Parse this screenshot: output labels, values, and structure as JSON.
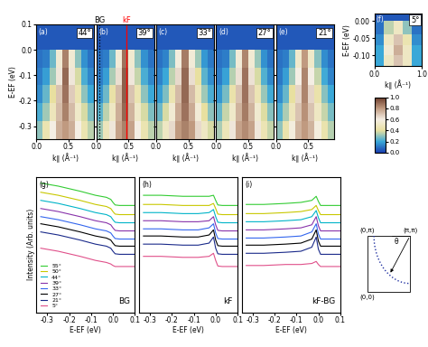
{
  "chart_data": [
    {
      "type": "heatmap",
      "title": "(a)",
      "annotation": "44°",
      "x_edges": [
        0.0,
        0.1,
        0.2,
        0.3,
        0.4,
        0.5,
        0.6,
        0.7,
        0.8,
        0.9
      ],
      "y_edges": [
        -0.35,
        -0.28,
        -0.21,
        -0.14,
        -0.07,
        0.0,
        0.1
      ],
      "cells": [
        [
          0.3,
          0.45,
          0.6,
          0.75,
          0.8,
          0.75,
          0.6,
          0.45,
          0.35
        ],
        [
          0.22,
          0.32,
          0.48,
          0.72,
          0.85,
          0.72,
          0.52,
          0.38,
          0.28
        ],
        [
          0.15,
          0.25,
          0.4,
          0.7,
          0.88,
          0.68,
          0.45,
          0.3,
          0.2
        ],
        [
          0.12,
          0.18,
          0.32,
          0.62,
          0.9,
          0.62,
          0.38,
          0.22,
          0.14
        ],
        [
          0.1,
          0.12,
          0.26,
          0.55,
          0.85,
          0.55,
          0.3,
          0.16,
          0.1
        ],
        [
          0.05,
          0.05,
          0.05,
          0.05,
          0.05,
          0.05,
          0.05,
          0.05,
          0.05
        ]
      ],
      "xlim": [
        0.0,
        0.9
      ],
      "ylim": [
        -0.35,
        0.1
      ],
      "xticks": [
        0.0,
        0.5
      ],
      "yticks": [
        -0.3,
        -0.2,
        -0.1,
        0.0,
        0.1
      ],
      "x_label": "k∥ (Å⁻¹)",
      "y_label": "E-EF (eV)",
      "tick_labels": true
    },
    {
      "type": "heatmap",
      "title": "(b)",
      "annotation": "39°",
      "x_edges": [
        0.0,
        0.1,
        0.2,
        0.3,
        0.4,
        0.5,
        0.6,
        0.7,
        0.8,
        0.9
      ],
      "y_edges": [
        -0.35,
        -0.28,
        -0.21,
        -0.14,
        -0.07,
        0.0,
        0.1
      ],
      "cells": [
        [
          0.32,
          0.48,
          0.62,
          0.78,
          0.85,
          0.78,
          0.6,
          0.45,
          0.35
        ],
        [
          0.24,
          0.35,
          0.5,
          0.75,
          0.9,
          0.74,
          0.52,
          0.38,
          0.28
        ],
        [
          0.16,
          0.26,
          0.42,
          0.72,
          0.92,
          0.7,
          0.45,
          0.3,
          0.2
        ],
        [
          0.12,
          0.18,
          0.33,
          0.64,
          0.92,
          0.62,
          0.36,
          0.22,
          0.14
        ],
        [
          0.1,
          0.12,
          0.26,
          0.56,
          0.88,
          0.54,
          0.3,
          0.16,
          0.1
        ],
        [
          0.05,
          0.05,
          0.05,
          0.05,
          0.05,
          0.05,
          0.05,
          0.05,
          0.05
        ]
      ],
      "lines": [
        {
          "name": "BG",
          "k": 0.05,
          "color": "black",
          "line_style": "dotted"
        },
        {
          "name": "kF",
          "k": 0.47,
          "color": "red",
          "line_style": "solid"
        }
      ],
      "xlim": [
        0.0,
        0.9
      ],
      "ylim": [
        -0.35,
        0.1
      ],
      "xticks": [
        0.0,
        0.5
      ],
      "yticks": [
        -0.3,
        -0.2,
        -0.1,
        0.0,
        0.1
      ],
      "x_label": "k∥ (Å⁻¹)",
      "tick_labels": "x"
    },
    {
      "type": "heatmap",
      "title": "(c)",
      "annotation": "33°",
      "x_edges": [
        0.0,
        0.1,
        0.2,
        0.3,
        0.4,
        0.5,
        0.6,
        0.7,
        0.8,
        0.9
      ],
      "y_edges": [
        -0.35,
        -0.28,
        -0.21,
        -0.14,
        -0.07,
        0.0,
        0.1
      ],
      "cells": [
        [
          0.35,
          0.5,
          0.65,
          0.8,
          0.85,
          0.8,
          0.65,
          0.5,
          0.38
        ],
        [
          0.26,
          0.38,
          0.55,
          0.76,
          0.88,
          0.76,
          0.56,
          0.4,
          0.3
        ],
        [
          0.18,
          0.28,
          0.45,
          0.72,
          0.9,
          0.72,
          0.48,
          0.32,
          0.22
        ],
        [
          0.13,
          0.2,
          0.35,
          0.65,
          0.9,
          0.64,
          0.4,
          0.24,
          0.15
        ],
        [
          0.1,
          0.13,
          0.28,
          0.58,
          0.86,
          0.56,
          0.32,
          0.17,
          0.11
        ],
        [
          0.05,
          0.05,
          0.05,
          0.05,
          0.05,
          0.05,
          0.05,
          0.05,
          0.05
        ]
      ],
      "xlim": [
        0.0,
        0.9
      ],
      "ylim": [
        -0.35,
        0.1
      ],
      "xticks": [
        0.0,
        0.5
      ],
      "yticks": [
        -0.3,
        -0.2,
        -0.1,
        0.0,
        0.1
      ],
      "x_label": "k∥ (Å⁻¹)",
      "tick_labels": "x"
    },
    {
      "type": "heatmap",
      "title": "(d)",
      "annotation": "27°",
      "x_edges": [
        0.0,
        0.1,
        0.2,
        0.3,
        0.4,
        0.5,
        0.6,
        0.7,
        0.8,
        0.9
      ],
      "y_edges": [
        -0.35,
        -0.28,
        -0.21,
        -0.14,
        -0.07,
        0.0,
        0.1
      ],
      "cells": [
        [
          0.33,
          0.47,
          0.62,
          0.78,
          0.83,
          0.78,
          0.62,
          0.46,
          0.36
        ],
        [
          0.25,
          0.36,
          0.52,
          0.74,
          0.86,
          0.74,
          0.54,
          0.39,
          0.29
        ],
        [
          0.17,
          0.27,
          0.43,
          0.7,
          0.88,
          0.7,
          0.46,
          0.31,
          0.21
        ],
        [
          0.12,
          0.19,
          0.34,
          0.63,
          0.88,
          0.63,
          0.38,
          0.23,
          0.14
        ],
        [
          0.1,
          0.12,
          0.27,
          0.56,
          0.84,
          0.55,
          0.31,
          0.16,
          0.1
        ],
        [
          0.05,
          0.05,
          0.05,
          0.05,
          0.05,
          0.05,
          0.05,
          0.05,
          0.05
        ]
      ],
      "xlim": [
        0.0,
        0.9
      ],
      "ylim": [
        -0.35,
        0.1
      ],
      "xticks": [
        0.0,
        0.5
      ],
      "yticks": [
        -0.3,
        -0.2,
        -0.1,
        0.0,
        0.1
      ],
      "x_label": "k∥ (Å⁻¹)",
      "tick_labels": "x"
    },
    {
      "type": "heatmap",
      "title": "(e)",
      "annotation": "21°",
      "x_edges": [
        0.0,
        0.1,
        0.2,
        0.3,
        0.4,
        0.5,
        0.6,
        0.7,
        0.8,
        0.9
      ],
      "y_edges": [
        -0.35,
        -0.28,
        -0.21,
        -0.14,
        -0.07,
        0.0,
        0.1
      ],
      "cells": [
        [
          0.3,
          0.44,
          0.58,
          0.74,
          0.8,
          0.74,
          0.58,
          0.44,
          0.34
        ],
        [
          0.22,
          0.33,
          0.48,
          0.7,
          0.82,
          0.7,
          0.5,
          0.36,
          0.27
        ],
        [
          0.15,
          0.25,
          0.4,
          0.66,
          0.84,
          0.66,
          0.43,
          0.29,
          0.2
        ],
        [
          0.11,
          0.18,
          0.32,
          0.6,
          0.84,
          0.6,
          0.36,
          0.21,
          0.13
        ],
        [
          0.1,
          0.12,
          0.25,
          0.53,
          0.8,
          0.52,
          0.29,
          0.15,
          0.1
        ],
        [
          0.05,
          0.05,
          0.05,
          0.05,
          0.05,
          0.05,
          0.05,
          0.05,
          0.05
        ]
      ],
      "xlim": [
        0.0,
        0.9
      ],
      "ylim": [
        -0.35,
        0.1
      ],
      "xticks": [
        0.0,
        0.5
      ],
      "yticks": [
        -0.3,
        -0.2,
        -0.1,
        0.0,
        0.1
      ],
      "x_label": "k∥ (Å⁻¹)",
      "tick_labels": "x"
    },
    {
      "type": "heatmap",
      "title": "(f)",
      "annotation": "5°",
      "x_edges": [
        0.0,
        0.2,
        0.4,
        0.6,
        0.8,
        1.0
      ],
      "y_edges": [
        -0.13,
        -0.1,
        -0.07,
        -0.04,
        0.0,
        0.02
      ],
      "cells": [
        [
          0.2,
          0.5,
          0.7,
          0.5,
          0.2
        ],
        [
          0.2,
          0.55,
          0.75,
          0.5,
          0.2
        ],
        [
          0.15,
          0.5,
          0.7,
          0.45,
          0.15
        ],
        [
          0.1,
          0.35,
          0.5,
          0.3,
          0.1
        ],
        [
          0.05,
          0.05,
          0.05,
          0.05,
          0.05
        ]
      ],
      "xlim": [
        0.0,
        1.0
      ],
      "ylim": [
        -0.13,
        0.02
      ],
      "xticks": [
        0.0,
        1.0
      ],
      "yticks": [
        {
          "value": -0.1,
          "label": "-0.10"
        },
        {
          "value": -0.05,
          "label": "-0.05"
        },
        {
          "value": 0.0,
          "label": "0.00"
        }
      ],
      "x_label": "k∥ (Å⁻¹)",
      "y_label": "E-EF (eV)",
      "tick_labels": true
    },
    {
      "type": "line",
      "title": "(g)",
      "annotation": "BG",
      "legend": "lower left",
      "x": [
        -0.33,
        -0.25,
        -0.15,
        -0.08,
        -0.03,
        -0.01,
        0.0,
        0.01,
        0.03,
        0.1
      ],
      "series": [
        {
          "name": "55°",
          "color": "#33cc33",
          "values": [
            9.2,
            8.9,
            8.4,
            8.0,
            7.8,
            7.6,
            7.3,
            7.05,
            7.0,
            7.0
          ]
        },
        {
          "name": "50°",
          "color": "#c8c800",
          "values": [
            8.3,
            8.0,
            7.5,
            7.1,
            6.9,
            6.7,
            6.4,
            6.15,
            6.1,
            6.1
          ]
        },
        {
          "name": "44°",
          "color": "#00b4c8",
          "values": [
            7.5,
            7.2,
            6.7,
            6.3,
            6.1,
            5.9,
            5.6,
            5.35,
            5.3,
            5.3
          ]
        },
        {
          "name": "39°",
          "color": "#8833aa",
          "values": [
            6.7,
            6.4,
            5.9,
            5.5,
            5.3,
            5.1,
            4.8,
            4.55,
            4.5,
            4.5
          ]
        },
        {
          "name": "33°",
          "color": "#3366ee",
          "values": [
            5.9,
            5.6,
            5.1,
            4.7,
            4.5,
            4.3,
            4.0,
            3.75,
            3.7,
            3.7
          ]
        },
        {
          "name": "27°",
          "color": "#000000",
          "values": [
            5.2,
            4.9,
            4.4,
            4.0,
            3.8,
            3.6,
            3.3,
            3.05,
            3.0,
            3.0
          ]
        },
        {
          "name": "21°",
          "color": "#1a2a8a",
          "values": [
            4.4,
            4.1,
            3.6,
            3.2,
            3.0,
            2.8,
            2.5,
            2.25,
            2.2,
            2.2
          ]
        },
        {
          "name": "5°",
          "color": "#e0508a",
          "values": [
            2.8,
            2.5,
            2.0,
            1.6,
            1.4,
            1.25,
            1.1,
            1.0,
            1.0,
            1.0
          ]
        }
      ],
      "xlim": [
        -0.35,
        0.1
      ],
      "ylim": [
        -3.5,
        9.8
      ],
      "xticks": [
        -0.3,
        -0.2,
        -0.1,
        0.0,
        0.1
      ],
      "x_label": "E-EF (eV)",
      "y_label": "Intensity (Arb. units)",
      "tick_labels": "x"
    },
    {
      "type": "line",
      "title": "(h)",
      "annotation": "kF",
      "x": [
        -0.33,
        -0.25,
        -0.15,
        -0.08,
        -0.03,
        -0.01,
        0.0,
        0.01,
        0.03,
        0.1
      ],
      "series": [
        {
          "name": "55°",
          "color": "#33cc33",
          "values": [
            8.0,
            8.0,
            7.9,
            7.9,
            7.9,
            8.0,
            7.5,
            7.05,
            7.0,
            7.0
          ]
        },
        {
          "name": "50°",
          "color": "#c8c800",
          "values": [
            7.1,
            7.1,
            7.0,
            7.0,
            7.0,
            7.2,
            6.7,
            6.15,
            6.1,
            6.1
          ]
        },
        {
          "name": "44°",
          "color": "#00b4c8",
          "values": [
            6.3,
            6.3,
            6.2,
            6.2,
            6.3,
            6.6,
            5.9,
            5.35,
            5.3,
            5.3
          ]
        },
        {
          "name": "39°",
          "color": "#8833aa",
          "values": [
            5.5,
            5.5,
            5.4,
            5.4,
            5.5,
            5.9,
            5.1,
            4.55,
            4.5,
            4.5
          ]
        },
        {
          "name": "33°",
          "color": "#3366ee",
          "values": [
            4.7,
            4.7,
            4.6,
            4.6,
            4.8,
            5.2,
            4.3,
            3.75,
            3.7,
            3.7
          ]
        },
        {
          "name": "27°",
          "color": "#000000",
          "values": [
            4.0,
            4.0,
            3.9,
            3.9,
            4.1,
            4.6,
            3.6,
            3.05,
            3.0,
            3.0
          ]
        },
        {
          "name": "21°",
          "color": "#1a2a8a",
          "values": [
            3.2,
            3.2,
            3.1,
            3.1,
            3.3,
            3.9,
            2.8,
            2.25,
            2.2,
            2.2
          ]
        },
        {
          "name": "5°",
          "color": "#e0508a",
          "values": [
            2.0,
            2.0,
            1.9,
            1.9,
            2.0,
            2.3,
            1.6,
            1.05,
            1.0,
            1.0
          ]
        }
      ],
      "xlim": [
        -0.35,
        0.1
      ],
      "ylim": [
        -3.5,
        9.8
      ],
      "xticks": [
        -0.3,
        -0.2,
        -0.1,
        0.0,
        0.1
      ],
      "x_label": "E-EF (eV)",
      "tick_labels": "x"
    },
    {
      "type": "line",
      "title": "(i)",
      "annotation": "kF-BG",
      "x": [
        -0.33,
        -0.25,
        -0.15,
        -0.08,
        -0.03,
        -0.01,
        0.0,
        0.01,
        0.03,
        0.1
      ],
      "series": [
        {
          "name": "55°",
          "color": "#33cc33",
          "values": [
            7.1,
            7.1,
            7.2,
            7.3,
            7.5,
            7.9,
            7.4,
            7.0,
            7.0,
            7.0
          ]
        },
        {
          "name": "50°",
          "color": "#c8c800",
          "values": [
            6.2,
            6.2,
            6.3,
            6.4,
            6.6,
            7.0,
            6.5,
            6.1,
            6.1,
            6.1
          ]
        },
        {
          "name": "44°",
          "color": "#00b4c8",
          "values": [
            5.4,
            5.4,
            5.5,
            5.6,
            5.9,
            6.5,
            5.8,
            5.3,
            5.3,
            5.3
          ]
        },
        {
          "name": "39°",
          "color": "#8833aa",
          "values": [
            4.6,
            4.6,
            4.7,
            4.8,
            5.1,
            5.9,
            5.0,
            4.5,
            4.5,
            4.5
          ]
        },
        {
          "name": "33°",
          "color": "#3366ee",
          "values": [
            3.8,
            3.8,
            3.9,
            4.0,
            4.4,
            5.2,
            4.2,
            3.7,
            3.7,
            3.7
          ]
        },
        {
          "name": "27°",
          "color": "#000000",
          "values": [
            3.1,
            3.1,
            3.2,
            3.3,
            3.7,
            4.6,
            3.5,
            3.0,
            3.0,
            3.0
          ]
        },
        {
          "name": "21°",
          "color": "#1a2a8a",
          "values": [
            2.3,
            2.3,
            2.4,
            2.5,
            2.9,
            3.9,
            2.7,
            2.2,
            2.2,
            2.2
          ]
        },
        {
          "name": "5°",
          "color": "#e0508a",
          "values": [
            1.1,
            1.1,
            1.2,
            1.2,
            1.3,
            1.5,
            1.2,
            1.0,
            1.0,
            1.0
          ]
        }
      ],
      "xlim": [
        -0.35,
        0.1
      ],
      "ylim": [
        -3.5,
        9.8
      ],
      "xticks": [
        -0.3,
        -0.2,
        -0.1,
        0.0,
        0.1
      ],
      "x_label": "E-EF (eV)",
      "tick_labels": "x"
    }
  ],
  "colorbar": {
    "range": [
      0.0,
      1.0
    ],
    "ticks": [
      0.0,
      0.2,
      0.4,
      0.6,
      0.8,
      1.0
    ]
  },
  "diagram": {
    "corner_labels": {
      "bottom_left": "(0,0)",
      "top_left": "(0,π)",
      "top_right": "(π,π)"
    },
    "angle_label": "θ"
  }
}
